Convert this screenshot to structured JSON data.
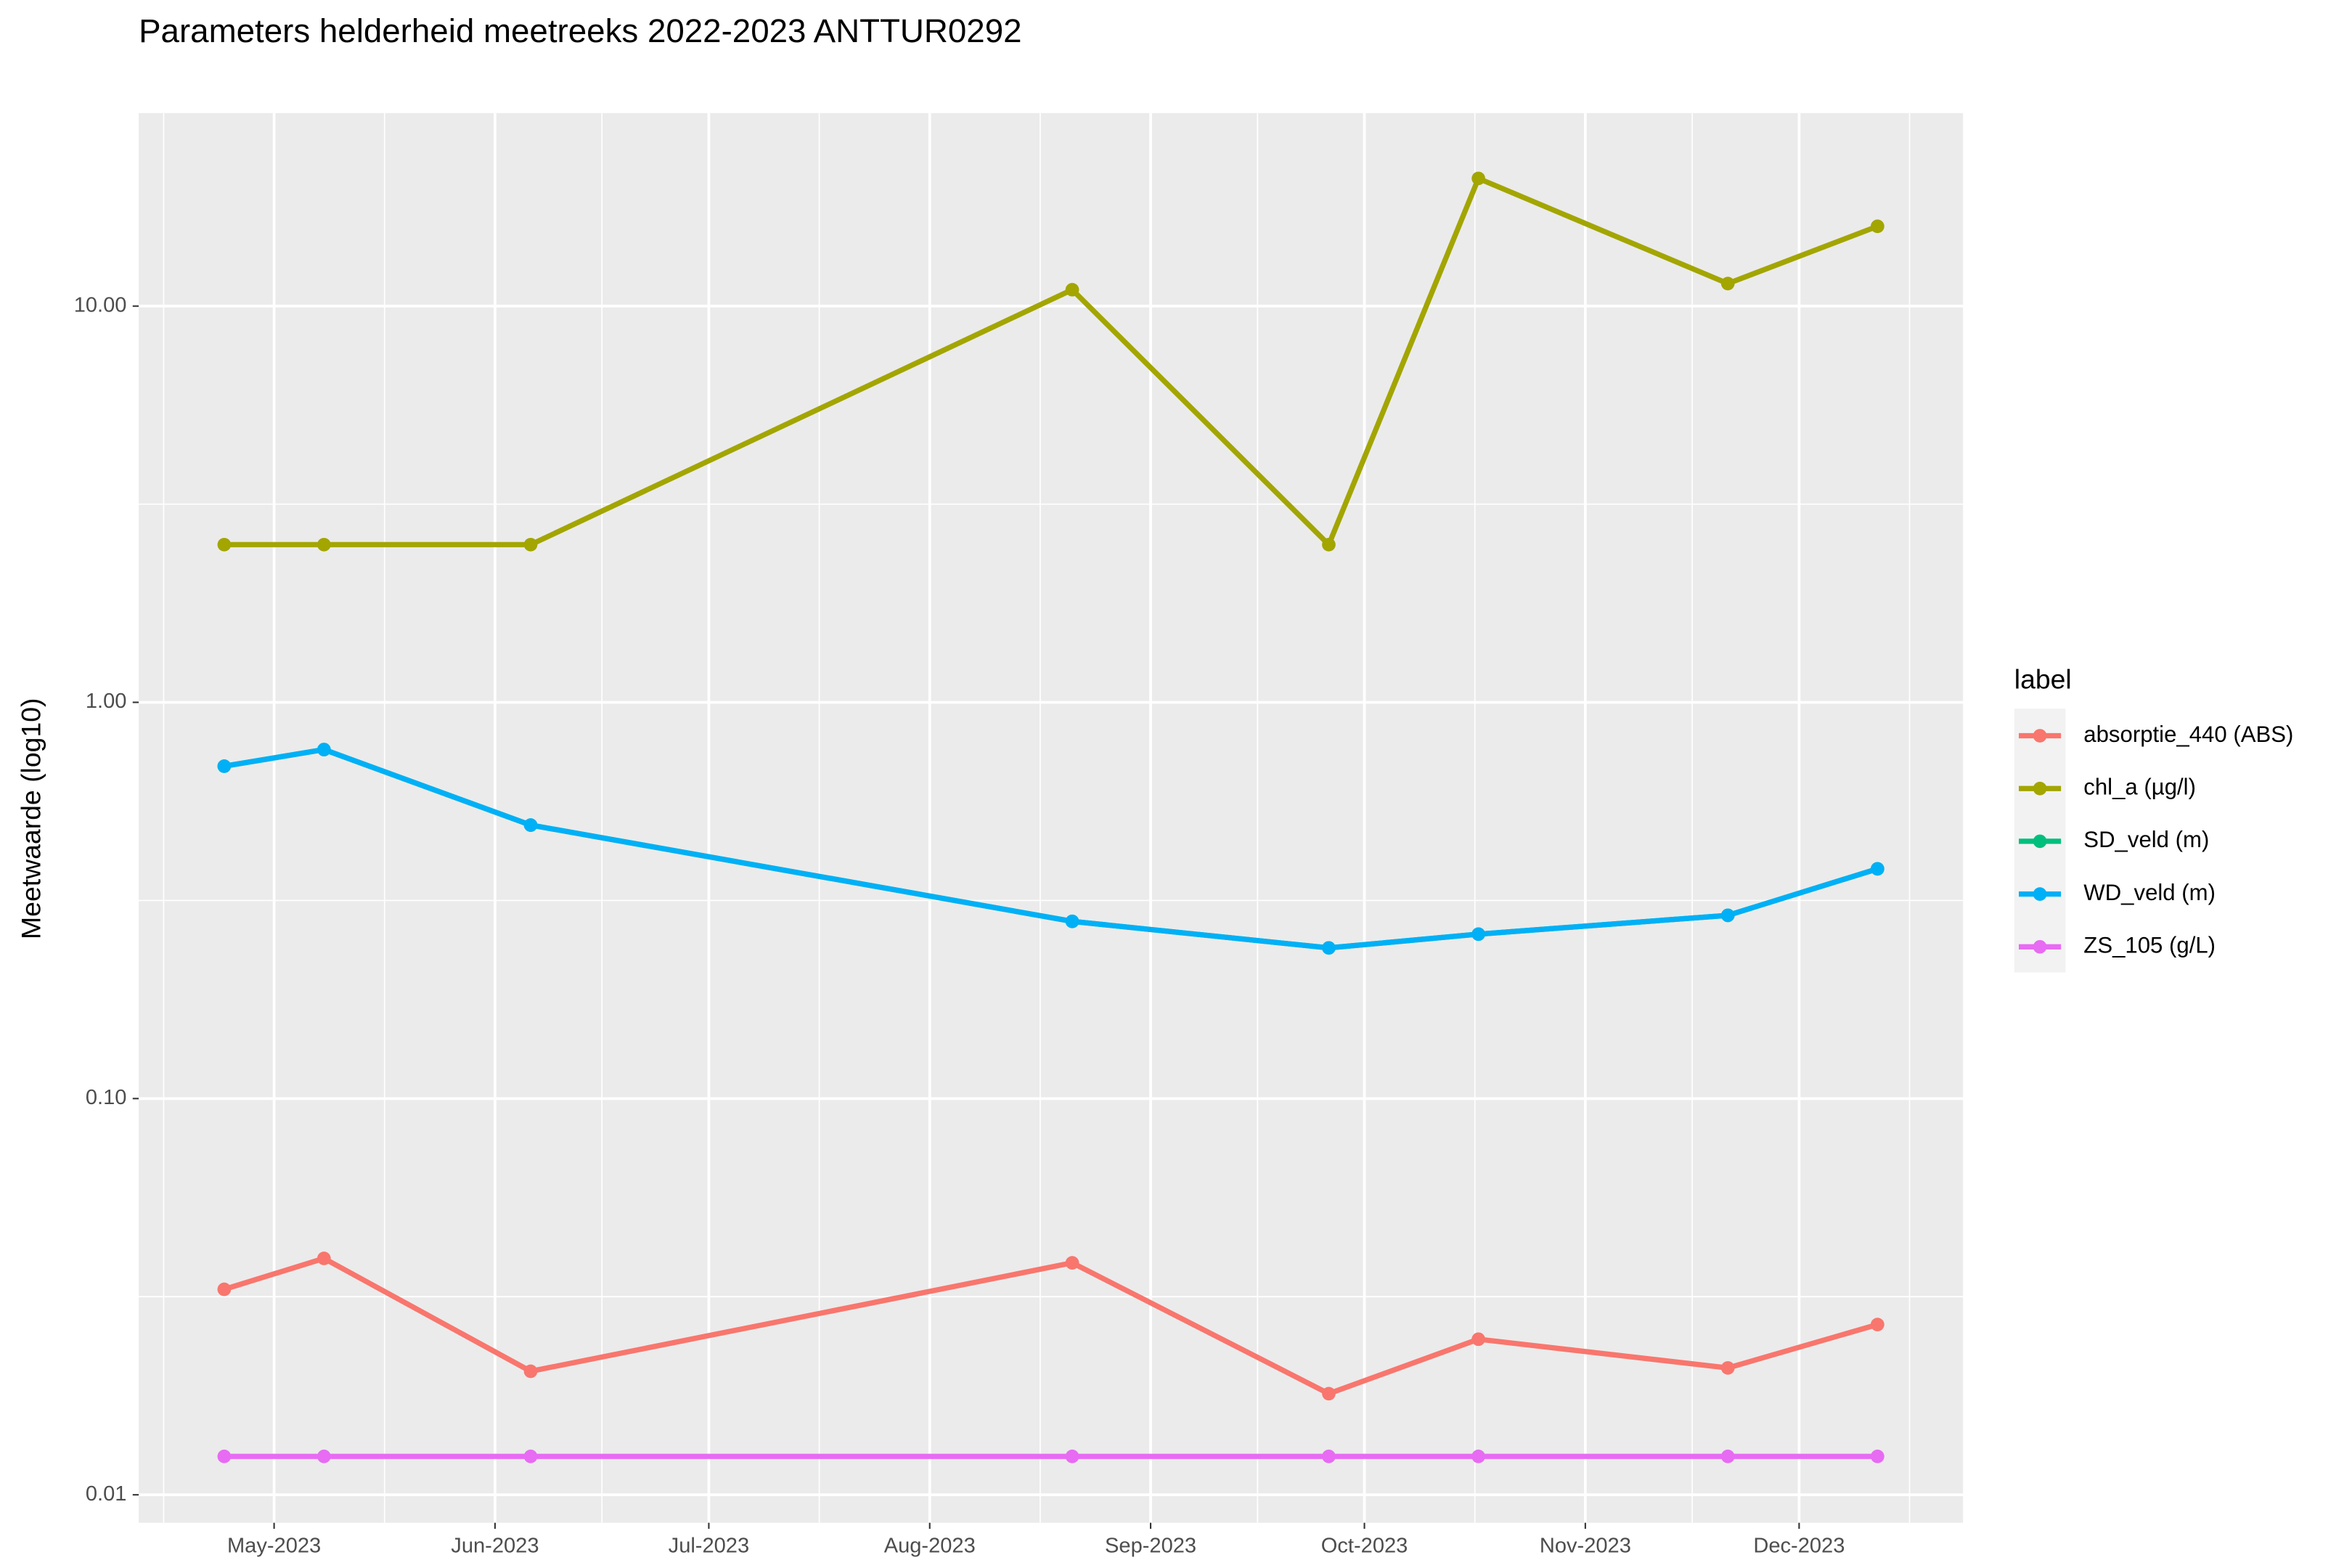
{
  "chart_data": {
    "type": "line",
    "title": "Parameters helderheid meetreeks 2022-2023 ANTTUR0292",
    "y_label": "Meetwaarde (log10)",
    "legend_title": "label",
    "legend_position": "right",
    "log_y": true,
    "grid": true,
    "x": [
      "2023-04-24",
      "2023-05-08",
      "2023-06-06",
      "2023-08-21",
      "2023-09-26",
      "2023-10-17",
      "2023-11-21",
      "2023-12-12"
    ],
    "xlim": [
      "2023-04-12",
      "2023-12-24"
    ],
    "xticks": [
      {
        "value": "2023-05-01",
        "label": "May-2023"
      },
      {
        "value": "2023-06-01",
        "label": "Jun-2023"
      },
      {
        "value": "2023-07-01",
        "label": "Jul-2023"
      },
      {
        "value": "2023-08-01",
        "label": "Aug-2023"
      },
      {
        "value": "2023-09-01",
        "label": "Sep-2023"
      },
      {
        "value": "2023-10-01",
        "label": "Oct-2023"
      },
      {
        "value": "2023-11-01",
        "label": "Nov-2023"
      },
      {
        "value": "2023-12-01",
        "label": "Dec-2023"
      }
    ],
    "ylim": [
      0.0085,
      30.7
    ],
    "yticks": [
      {
        "value": 0.01,
        "label": "0.01"
      },
      {
        "value": 0.1,
        "label": "0.10"
      },
      {
        "value": 1,
        "label": "1.00"
      },
      {
        "value": 10,
        "label": "10.00"
      }
    ],
    "series": [
      {
        "name": "absorptie_440 (ABS)",
        "color": "#F8766D",
        "values": [
          0.033,
          0.0395,
          0.0205,
          0.0385,
          0.018,
          0.0247,
          0.0209,
          0.0269
        ]
      },
      {
        "name": "chl_a (µg/l)",
        "color": "#A3A500",
        "values": [
          2.5,
          2.5,
          2.5,
          11,
          2.5,
          21,
          11.4,
          15.9
        ]
      },
      {
        "name": "SD_veld (m)",
        "color": "#00BF7D",
        "values": [
          0.69,
          0.76,
          0.49,
          0.28,
          0.24,
          0.26,
          0.29,
          0.38
        ]
      },
      {
        "name": "WD_veld (m)",
        "color": "#00B0F6",
        "values": [
          0.69,
          0.76,
          0.49,
          0.28,
          0.24,
          0.26,
          0.29,
          0.38
        ]
      },
      {
        "name": "ZS_105 (g/L)",
        "color": "#E76BF3",
        "values": [
          0.0125,
          0.0125,
          0.0125,
          0.0125,
          0.0125,
          0.0125,
          0.0125,
          0.0125
        ]
      }
    ]
  }
}
